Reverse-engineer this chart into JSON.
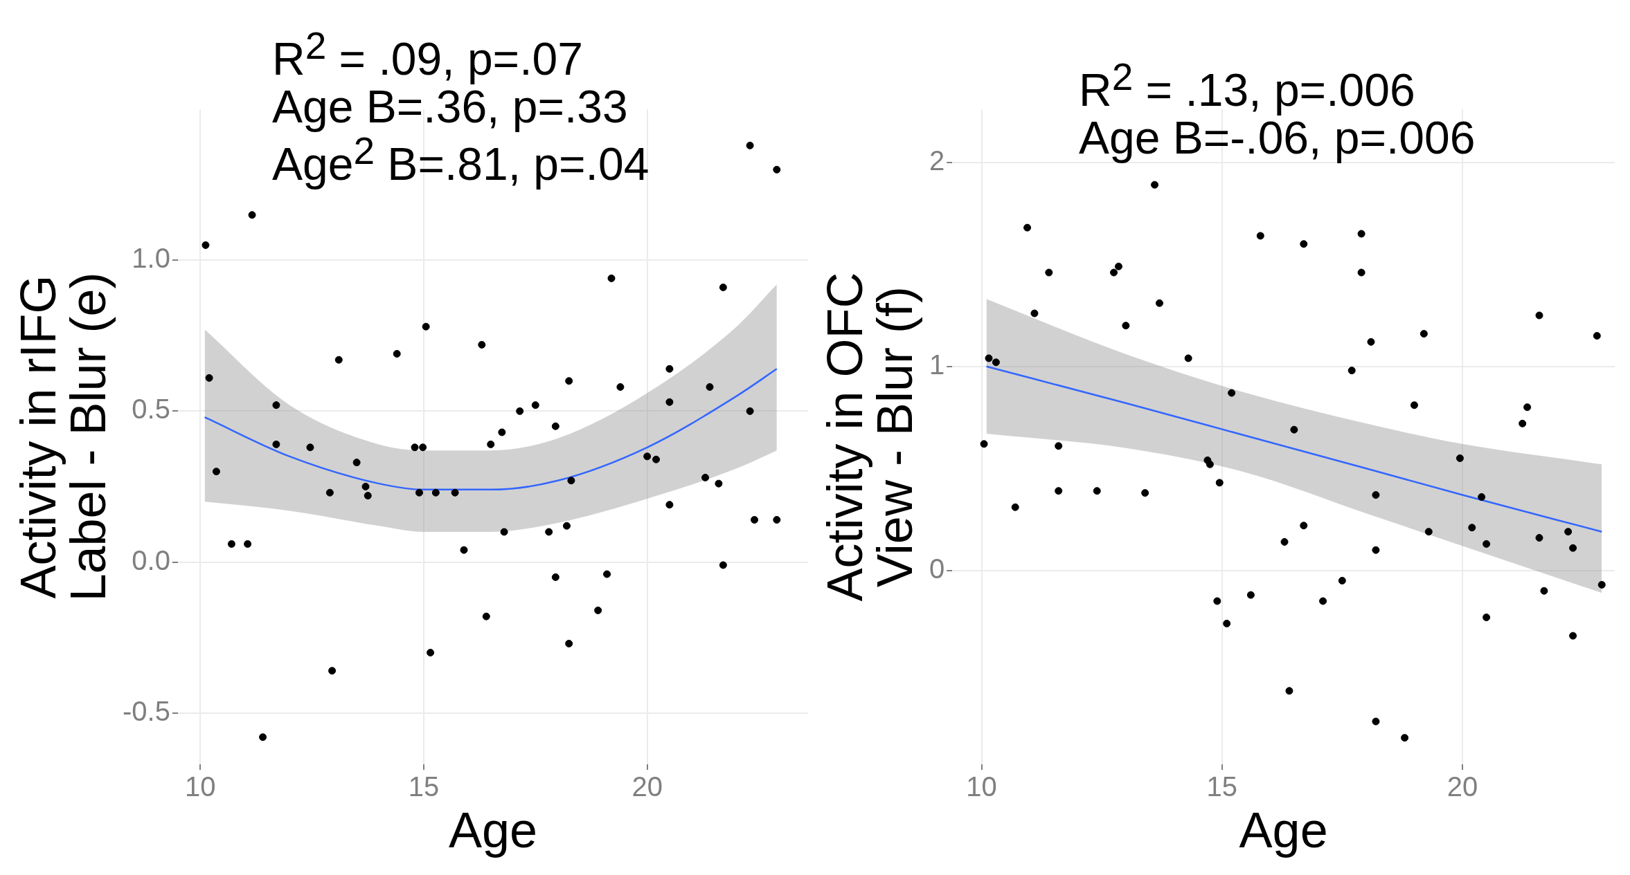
{
  "chart_data": [
    {
      "type": "scatter",
      "xlabel": "Age",
      "ylabel": "Activity in rIFG\nLabel - Blur (e)",
      "xlim": [
        9.5,
        23.6
      ],
      "xticks": [
        10,
        15,
        20
      ],
      "ylim": [
        -0.67,
        1.5
      ],
      "yticks": [
        {
          "value": -0.5,
          "label": "-0.5"
        },
        {
          "value": 0,
          "label": "0.0"
        },
        {
          "value": 0.5,
          "label": "0.5"
        },
        {
          "value": 1,
          "label": "1.0"
        }
      ],
      "grid": true,
      "annotations": [
        "R$^{2}$ = .09, p=.07",
        "Age B=.36, p=.33",
        "Age$^{2}$ B=.81, p=.04"
      ],
      "series": [
        {
          "type": "scatter",
          "color": "#000000",
          "x": [
            10.12,
            10.2,
            10.36,
            10.7,
            11.06,
            11.16,
            11.4,
            11.7,
            11.7,
            12.46,
            12.9,
            12.95,
            13.1,
            13.5,
            13.7,
            13.75,
            14.4,
            14.8,
            14.9,
            14.98,
            15.05,
            15.15,
            15.27,
            15.7,
            15.9,
            16.3,
            16.4,
            16.5,
            16.75,
            16.8,
            17.15,
            17.5,
            17.8,
            17.95,
            17.95,
            18.2,
            18.25,
            18.3,
            18.25,
            18.9,
            19.1,
            19.2,
            19.4,
            20.0,
            20.2,
            20.5,
            20.5,
            20.5,
            21.3,
            21.4,
            21.6,
            21.7,
            21.7,
            22.3,
            22.9,
            22.3,
            22.4,
            22.9
          ],
          "values": [
            1.05,
            0.61,
            0.3,
            0.06,
            0.06,
            1.15,
            -0.58,
            0.52,
            0.39,
            0.38,
            0.23,
            -0.36,
            0.67,
            0.33,
            0.25,
            0.22,
            0.69,
            0.38,
            0.23,
            0.38,
            0.78,
            -0.3,
            0.23,
            0.23,
            0.04,
            0.72,
            -0.18,
            0.39,
            0.43,
            0.1,
            0.5,
            0.52,
            0.1,
            0.45,
            -0.05,
            0.12,
            0.6,
            0.27,
            -0.27,
            -0.16,
            -0.04,
            0.94,
            0.58,
            0.35,
            0.34,
            0.64,
            0.53,
            0.19,
            0.28,
            0.58,
            0.26,
            0.91,
            -0.01,
            1.38,
            1.3,
            0.5,
            0.14,
            0.14
          ]
        },
        {
          "type": "line",
          "color": "#3366ff",
          "x": [
            10.1,
            12,
            14,
            15,
            16.5,
            18,
            20,
            22,
            22.9
          ],
          "values": [
            0.48,
            0.35,
            0.26,
            0.24,
            0.24,
            0.27,
            0.38,
            0.55,
            0.64
          ],
          "lower": [
            0.2,
            0.17,
            0.12,
            0.1,
            0.1,
            0.13,
            0.21,
            0.31,
            0.37
          ],
          "upper": [
            0.77,
            0.52,
            0.39,
            0.37,
            0.37,
            0.41,
            0.56,
            0.78,
            0.92
          ]
        }
      ]
    },
    {
      "type": "scatter",
      "xlabel": "Age",
      "ylabel": "Activity in OFC\nView - Blur (f)",
      "xlim": [
        9.39,
        23.17
      ],
      "xticks": [
        10,
        15,
        20
      ],
      "ylim": [
        -0.95,
        2.26
      ],
      "yticks": [
        0,
        1,
        2
      ],
      "grid": true,
      "annotations": [
        "R$^{2}$ = .13, p=.006",
        "Age B=-.06, p=.006"
      ],
      "series": [
        {
          "type": "scatter",
          "color": "#000000",
          "x": [
            10.05,
            10.15,
            10.3,
            10.7,
            10.95,
            11.1,
            11.4,
            11.6,
            11.6,
            12.4,
            12.75,
            12.85,
            13.0,
            13.4,
            13.6,
            13.7,
            14.3,
            14.7,
            14.75,
            14.9,
            14.95,
            15.1,
            15.2,
            15.6,
            15.8,
            16.3,
            16.4,
            16.5,
            16.7,
            16.7,
            17.1,
            17.5,
            17.7,
            17.9,
            17.9,
            18.1,
            18.2,
            18.2,
            18.2,
            18.8,
            19.0,
            19.2,
            19.3,
            19.95,
            20.2,
            20.4,
            20.5,
            20.5,
            21.25,
            21.35,
            21.6,
            21.6,
            21.7,
            22.2,
            22.3,
            22.3,
            22.8,
            22.9
          ],
          "values": [
            0.62,
            1.04,
            1.02,
            0.31,
            1.68,
            1.26,
            1.46,
            0.61,
            0.39,
            0.39,
            1.46,
            1.49,
            1.2,
            0.38,
            1.89,
            1.31,
            1.04,
            0.54,
            0.52,
            -0.15,
            0.43,
            -0.26,
            0.87,
            -0.12,
            1.64,
            0.14,
            -0.59,
            0.69,
            1.6,
            0.22,
            -0.15,
            -0.05,
            0.98,
            1.65,
            1.46,
            1.12,
            0.37,
            0.1,
            -0.74,
            -0.82,
            0.81,
            1.16,
            0.19,
            0.55,
            0.21,
            0.36,
            -0.23,
            0.13,
            0.72,
            0.8,
            0.16,
            1.25,
            -0.1,
            0.19,
            0.11,
            -0.32,
            1.15,
            -0.07
          ]
        },
        {
          "type": "line",
          "color": "#3366ff",
          "x": [
            10.1,
            13,
            15.5,
            18,
            20,
            22.9
          ],
          "values": [
            1.0,
            0.82,
            0.66,
            0.5,
            0.37,
            0.19
          ],
          "lower": [
            0.67,
            0.6,
            0.48,
            0.28,
            0.12,
            -0.11
          ],
          "upper": [
            1.33,
            1.06,
            0.87,
            0.72,
            0.62,
            0.52
          ]
        }
      ]
    }
  ]
}
